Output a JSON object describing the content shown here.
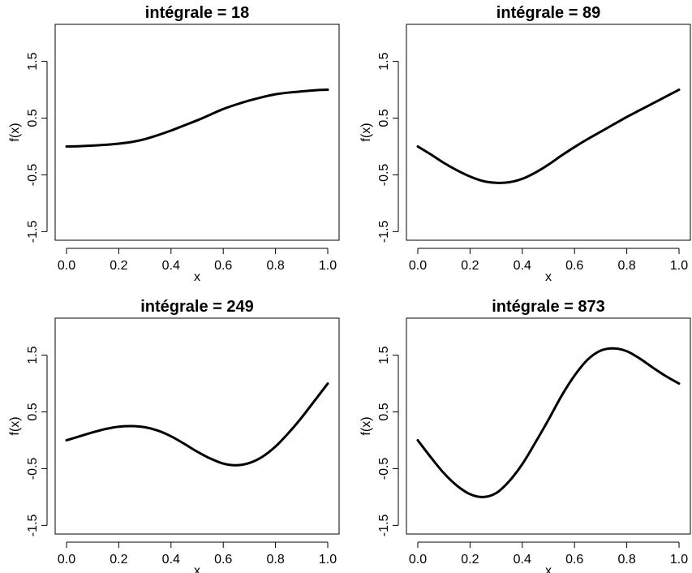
{
  "figure": {
    "background": "#ffffff",
    "line_color": "#000000"
  },
  "chart_data": [
    {
      "type": "line",
      "title": "intégrale = 18",
      "xlabel": "x",
      "ylabel": "f(x)",
      "xlim": [
        0,
        1
      ],
      "ylim": [
        -1.5,
        2.0
      ],
      "xticks": [
        0.0,
        0.2,
        0.4,
        0.6,
        0.8,
        1.0
      ],
      "xtick_labels": [
        "0.0",
        "0.2",
        "0.4",
        "0.6",
        "0.8",
        "1.0"
      ],
      "yticks": [
        -1.5,
        -0.5,
        0.5,
        1.5
      ],
      "ytick_labels": [
        "-1.5",
        "-0.5",
        "0.5",
        "1.5"
      ],
      "grid": false,
      "series": [
        {
          "color": "#000000",
          "x": [
            0.0,
            0.05,
            0.1,
            0.15,
            0.2,
            0.25,
            0.3,
            0.35,
            0.4,
            0.45,
            0.5,
            0.55,
            0.6,
            0.65,
            0.7,
            0.75,
            0.8,
            0.85,
            0.9,
            0.95,
            1.0
          ],
          "y": [
            0.0,
            0.005,
            0.015,
            0.03,
            0.05,
            0.08,
            0.13,
            0.2,
            0.28,
            0.37,
            0.46,
            0.56,
            0.66,
            0.74,
            0.81,
            0.87,
            0.92,
            0.95,
            0.97,
            0.99,
            1.0
          ]
        }
      ]
    },
    {
      "type": "line",
      "title": "intégrale = 89",
      "xlabel": "x",
      "ylabel": "f(x)",
      "xlim": [
        0,
        1
      ],
      "ylim": [
        -1.5,
        2.0
      ],
      "xticks": [
        0.0,
        0.2,
        0.4,
        0.6,
        0.8,
        1.0
      ],
      "xtick_labels": [
        "0.0",
        "0.2",
        "0.4",
        "0.6",
        "0.8",
        "1.0"
      ],
      "yticks": [
        -1.5,
        -0.5,
        0.5,
        1.5
      ],
      "ytick_labels": [
        "-1.5",
        "-0.5",
        "0.5",
        "1.5"
      ],
      "grid": false,
      "series": [
        {
          "color": "#000000",
          "x": [
            0.0,
            0.05,
            0.1,
            0.15,
            0.2,
            0.25,
            0.3,
            0.35,
            0.4,
            0.45,
            0.5,
            0.55,
            0.6,
            0.65,
            0.7,
            0.75,
            0.8,
            0.85,
            0.9,
            0.95,
            1.0
          ],
          "y": [
            0.0,
            -0.14,
            -0.29,
            -0.42,
            -0.53,
            -0.61,
            -0.64,
            -0.63,
            -0.57,
            -0.46,
            -0.32,
            -0.16,
            -0.01,
            0.13,
            0.26,
            0.39,
            0.52,
            0.64,
            0.76,
            0.88,
            1.0
          ]
        }
      ]
    },
    {
      "type": "line",
      "title": "intégrale = 249",
      "xlabel": "x",
      "ylabel": "f(x)",
      "xlim": [
        0,
        1
      ],
      "ylim": [
        -1.5,
        2.0
      ],
      "xticks": [
        0.0,
        0.2,
        0.4,
        0.6,
        0.8,
        1.0
      ],
      "xtick_labels": [
        "0.0",
        "0.2",
        "0.4",
        "0.6",
        "0.8",
        "1.0"
      ],
      "yticks": [
        -1.5,
        -0.5,
        0.5,
        1.5
      ],
      "ytick_labels": [
        "-1.5",
        "-0.5",
        "0.5",
        "1.5"
      ],
      "grid": false,
      "series": [
        {
          "color": "#000000",
          "x": [
            0.0,
            0.05,
            0.1,
            0.15,
            0.2,
            0.25,
            0.3,
            0.35,
            0.4,
            0.45,
            0.5,
            0.55,
            0.6,
            0.65,
            0.7,
            0.75,
            0.8,
            0.85,
            0.9,
            0.95,
            1.0
          ],
          "y": [
            0.0,
            0.07,
            0.14,
            0.2,
            0.24,
            0.25,
            0.23,
            0.17,
            0.07,
            -0.06,
            -0.2,
            -0.32,
            -0.41,
            -0.44,
            -0.4,
            -0.29,
            -0.11,
            0.13,
            0.4,
            0.7,
            1.0
          ]
        }
      ]
    },
    {
      "type": "line",
      "title": "intégrale = 873",
      "xlabel": "x",
      "ylabel": "f(x)",
      "xlim": [
        0,
        1
      ],
      "ylim": [
        -1.5,
        2.0
      ],
      "xticks": [
        0.0,
        0.2,
        0.4,
        0.6,
        0.8,
        1.0
      ],
      "xtick_labels": [
        "0.0",
        "0.2",
        "0.4",
        "0.6",
        "0.8",
        "1.0"
      ],
      "yticks": [
        -1.5,
        -0.5,
        0.5,
        1.5
      ],
      "ytick_labels": [
        "-1.5",
        "-0.5",
        "0.5",
        "1.5"
      ],
      "grid": false,
      "series": [
        {
          "color": "#000000",
          "x": [
            0.0,
            0.05,
            0.1,
            0.15,
            0.2,
            0.25,
            0.3,
            0.35,
            0.4,
            0.45,
            0.5,
            0.55,
            0.6,
            0.65,
            0.7,
            0.75,
            0.8,
            0.85,
            0.9,
            0.95,
            1.0
          ],
          "y": [
            0.0,
            -0.3,
            -0.58,
            -0.8,
            -0.95,
            -1.0,
            -0.93,
            -0.72,
            -0.42,
            -0.04,
            0.36,
            0.78,
            1.14,
            1.42,
            1.58,
            1.62,
            1.57,
            1.44,
            1.28,
            1.13,
            1.0
          ]
        }
      ]
    }
  ]
}
